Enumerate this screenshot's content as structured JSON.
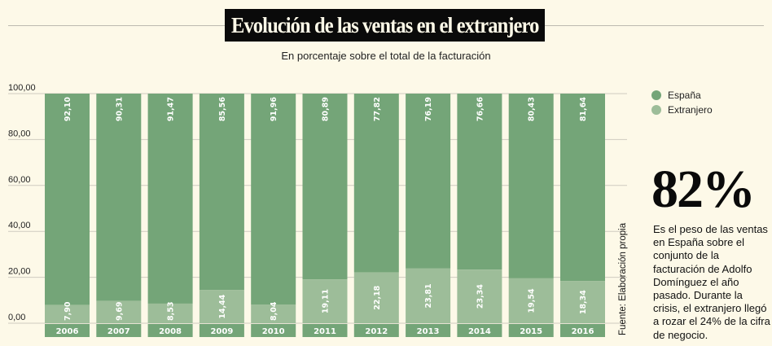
{
  "chart_data": {
    "type": "bar",
    "stacked": true,
    "title": "Evolución de las ventas en el extranjero",
    "subtitle": "En porcentaje sobre el total de la facturación",
    "categories": [
      "2006",
      "2007",
      "2008",
      "2009",
      "2010",
      "2011",
      "2012",
      "2013",
      "2014",
      "2015",
      "2016"
    ],
    "series": [
      {
        "name": "Extranjero",
        "color": "#9dbd99",
        "values": [
          7.9,
          9.69,
          8.53,
          14.44,
          8.04,
          19.11,
          22.18,
          23.81,
          23.34,
          19.54,
          18.34
        ],
        "labels": [
          "7,90",
          "9,69",
          "8,53",
          "14,44",
          "8,04",
          "19,11",
          "22,18",
          "23,81",
          "23,34",
          "19,54",
          "18,34"
        ]
      },
      {
        "name": "España",
        "color": "#74a578",
        "values": [
          92.1,
          90.31,
          91.47,
          85.56,
          91.96,
          80.89,
          77.82,
          76.19,
          76.66,
          80.43,
          81.64
        ],
        "labels": [
          "92,10",
          "90,31",
          "91,47",
          "85,56",
          "91,96",
          "80,89",
          "77,82",
          "76,19",
          "76,66",
          "80,43",
          "81,64"
        ]
      }
    ],
    "ylim": [
      0,
      100
    ],
    "yticks": [
      "0,00",
      "20,00",
      "40,00",
      "60,00",
      "80,00",
      "100,00"
    ],
    "grid": true,
    "legend_placement": "right"
  },
  "legend": [
    "España",
    "Extranjero"
  ],
  "highlight": {
    "value": "82%",
    "text": "Es el peso de las ventas en España sobre el conjunto de la facturación de Adolfo Domínguez el año pasado. Durante la crisis, el extranjero llegó a rozar el 24% de la cifra de negocio."
  },
  "source": "Fuente: Elaboración propia"
}
